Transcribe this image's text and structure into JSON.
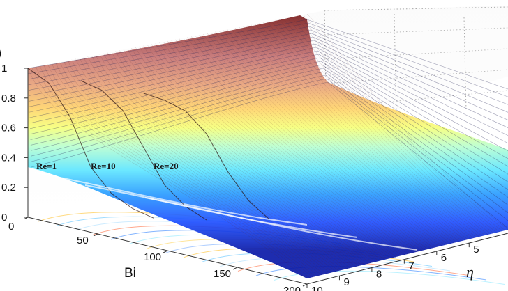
{
  "chart_data": {
    "type": "surface",
    "title": "",
    "z_axis": {
      "label": "",
      "ticks": [
        "0",
        "0.2",
        "0.4",
        "0.6",
        "0.8",
        "1"
      ],
      "range": [
        0,
        1
      ]
    },
    "bi_axis": {
      "label": "Bi",
      "ticks": [
        "0",
        "50",
        "100",
        "150",
        "200"
      ],
      "range": [
        0,
        200
      ]
    },
    "eta_axis": {
      "label": "η",
      "ticks": [
        "5",
        "6",
        "7",
        "8",
        "9",
        "10"
      ],
      "range": [
        0,
        10
      ]
    },
    "series": [
      {
        "name": "Re=1",
        "label": "Re=1",
        "front_values": [
          1.0,
          0.93,
          0.72,
          0.38,
          0.22,
          0.15,
          0.12
        ]
      },
      {
        "name": "Re=10",
        "label": "Re=10",
        "front_values": [
          1.0,
          0.97,
          0.86,
          0.62,
          0.38,
          0.26,
          0.2
        ]
      },
      {
        "name": "Re=20",
        "label": "Re=20",
        "front_values": [
          1.0,
          0.99,
          0.95,
          0.82,
          0.58,
          0.4,
          0.3
        ]
      }
    ],
    "colormap": [
      "#00008f",
      "#0000ff",
      "#0080ff",
      "#00ffff",
      "#80ff80",
      "#ffff00",
      "#ff8000",
      "#ff0000",
      "#800000"
    ],
    "grid": true,
    "contours_on_floor": true
  }
}
